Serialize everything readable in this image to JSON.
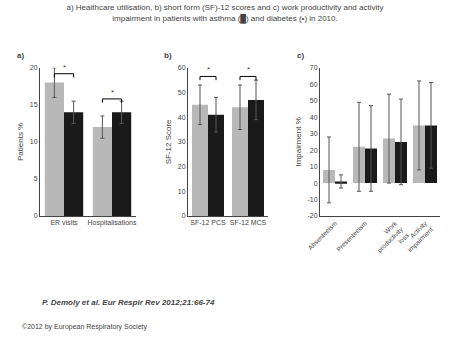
{
  "title": "a) Healthcare utilisation, b) short form (SF)-12 scores and c) work productivity and activity\nimpairment in patients with asthma (█) and diabetes (•) in 2010.",
  "annotations": [
    "P. Demoly et al. Eur Respir Rev 2012;21:66-74",
    "©2012 by European Respiratory Society"
  ],
  "chart_data": [
    {
      "type": "bar",
      "title": "a)",
      "ylabel": "Patients %",
      "categories": [
        "ER visits",
        "Hospitalisations"
      ],
      "series": [
        {
          "color": "#b8b8b8",
          "values": [
            18.0,
            12.0
          ],
          "errors": [
            2.0,
            1.5
          ]
        },
        {
          "color": "#1a1a1a",
          "values": [
            14.0,
            14.0
          ],
          "errors": [
            1.5,
            1.5
          ]
        }
      ],
      "ylim": [
        0,
        20
      ],
      "yticks": [
        0,
        5,
        10,
        15,
        20
      ],
      "grid": false,
      "annotations": [
        {
          "text": "*",
          "category": "ER visits",
          "y": 19.2
        },
        {
          "text": "*",
          "category": "Hospitalisations",
          "y": 15.8
        }
      ]
    },
    {
      "type": "bar",
      "title": "b)",
      "ylabel": "SF-12 Score",
      "categories": [
        "SF-12 PCS",
        "SF-12 MCS"
      ],
      "series": [
        {
          "color": "#b8b8b8",
          "values": [
            45.0,
            44.0
          ],
          "errors": [
            8.0,
            9.0
          ]
        },
        {
          "color": "#1a1a1a",
          "values": [
            41.0,
            47.0
          ],
          "errors": [
            7.0,
            8.0
          ]
        }
      ],
      "ylim": [
        0,
        60
      ],
      "yticks": [
        0,
        10,
        20,
        30,
        40,
        50,
        60
      ],
      "grid": false,
      "annotations": [
        {
          "text": "*",
          "category": "SF-12 PCS",
          "y": 56.5
        },
        {
          "text": "*",
          "category": "SF-12 MCS",
          "y": 56.5
        }
      ]
    },
    {
      "type": "bar",
      "title": "c)",
      "ylabel": "Impairment %",
      "categories": [
        "Absenteeism",
        "Presenteeism",
        "Work\nproductivity\nloss",
        "Activity\nimpairment"
      ],
      "series": [
        {
          "color": "#b8b8b8",
          "values": [
            8.0,
            22.0,
            27.0,
            35.0
          ],
          "errors": [
            20.0,
            27.0,
            27.0,
            27.0
          ]
        },
        {
          "color": "#1a1a1a",
          "values": [
            1.0,
            21.0,
            25.0,
            35.0
          ],
          "errors": [
            4.0,
            26.0,
            26.0,
            26.0
          ]
        }
      ],
      "ylim": [
        -20,
        70
      ],
      "yticks": [
        -20,
        -10,
        0,
        10,
        20,
        30,
        40,
        50,
        60,
        70
      ],
      "grid": false
    }
  ]
}
